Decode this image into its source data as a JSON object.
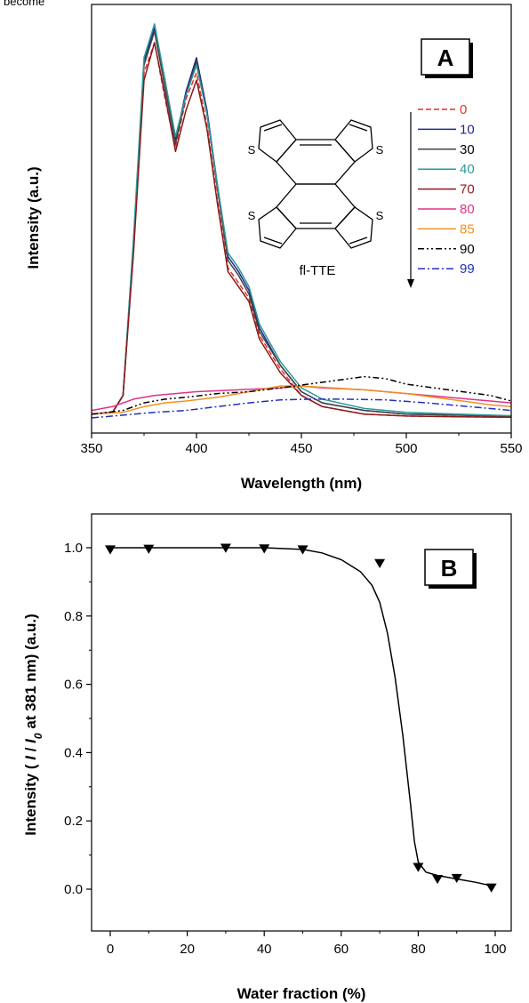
{
  "top_text": "become",
  "chart_data": [
    {
      "type": "line",
      "panel_label": "A",
      "xlabel": "Wavelength (nm)",
      "ylabel": "Intensity (a.u.)",
      "xlim": [
        350,
        550
      ],
      "ylim": [
        0,
        1.06
      ],
      "x_ticks": [
        350,
        400,
        450,
        500,
        550
      ],
      "y_ticks_shown": false,
      "molecule_label": "fl-TTE",
      "molecule_atom_label": "S",
      "legend_position": "right",
      "legend_arrow": "downward",
      "series": [
        {
          "name": "0",
          "color": "#e8302a",
          "dash": "dashed",
          "points": [
            [
              350,
              0.01
            ],
            [
              360,
              0.015
            ],
            [
              365,
              0.06
            ],
            [
              370,
              0.45
            ],
            [
              375,
              0.92
            ],
            [
              380,
              1.0
            ],
            [
              385,
              0.85
            ],
            [
              390,
              0.72
            ],
            [
              395,
              0.85
            ],
            [
              400,
              0.92
            ],
            [
              405,
              0.78
            ],
            [
              410,
              0.58
            ],
            [
              415,
              0.4
            ],
            [
              420,
              0.36
            ],
            [
              425,
              0.32
            ],
            [
              430,
              0.22
            ],
            [
              440,
              0.13
            ],
            [
              450,
              0.06
            ],
            [
              460,
              0.03
            ],
            [
              480,
              0.01
            ],
            [
              500,
              0.005
            ],
            [
              525,
              0.003
            ],
            [
              550,
              0.002
            ]
          ]
        },
        {
          "name": "10",
          "color": "#1f2a8a",
          "dash": "solid",
          "points": [
            [
              350,
              0.01
            ],
            [
              360,
              0.015
            ],
            [
              365,
              0.06
            ],
            [
              370,
              0.47
            ],
            [
              375,
              0.95
            ],
            [
              380,
              1.04
            ],
            [
              385,
              0.9
            ],
            [
              390,
              0.74
            ],
            [
              395,
              0.87
            ],
            [
              400,
              0.96
            ],
            [
              405,
              0.82
            ],
            [
              410,
              0.62
            ],
            [
              415,
              0.43
            ],
            [
              420,
              0.39
            ],
            [
              425,
              0.34
            ],
            [
              430,
              0.24
            ],
            [
              440,
              0.14
            ],
            [
              450,
              0.07
            ],
            [
              460,
              0.04
            ],
            [
              480,
              0.02
            ],
            [
              500,
              0.01
            ],
            [
              525,
              0.008
            ],
            [
              550,
              0.005
            ]
          ]
        },
        {
          "name": "30",
          "color": "#444444",
          "dash": "solid",
          "points": [
            [
              350,
              0.01
            ],
            [
              360,
              0.015
            ],
            [
              365,
              0.06
            ],
            [
              370,
              0.46
            ],
            [
              375,
              0.94
            ],
            [
              380,
              1.03
            ],
            [
              385,
              0.88
            ],
            [
              390,
              0.73
            ],
            [
              395,
              0.86
            ],
            [
              400,
              0.95
            ],
            [
              405,
              0.81
            ],
            [
              410,
              0.61
            ],
            [
              415,
              0.42
            ],
            [
              420,
              0.38
            ],
            [
              425,
              0.33
            ],
            [
              430,
              0.23
            ],
            [
              440,
              0.14
            ],
            [
              450,
              0.07
            ],
            [
              460,
              0.04
            ],
            [
              480,
              0.02
            ],
            [
              500,
              0.01
            ],
            [
              525,
              0.007
            ],
            [
              550,
              0.004
            ]
          ]
        },
        {
          "name": "40",
          "color": "#2a9a9a",
          "dash": "solid",
          "points": [
            [
              350,
              0.01
            ],
            [
              360,
              0.015
            ],
            [
              365,
              0.06
            ],
            [
              370,
              0.48
            ],
            [
              375,
              0.96
            ],
            [
              380,
              1.05
            ],
            [
              385,
              0.9
            ],
            [
              390,
              0.75
            ],
            [
              395,
              0.86
            ],
            [
              400,
              0.94
            ],
            [
              405,
              0.81
            ],
            [
              410,
              0.62
            ],
            [
              415,
              0.44
            ],
            [
              420,
              0.4
            ],
            [
              425,
              0.35
            ],
            [
              430,
              0.25
            ],
            [
              440,
              0.15
            ],
            [
              450,
              0.08
            ],
            [
              460,
              0.05
            ],
            [
              480,
              0.025
            ],
            [
              500,
              0.015
            ],
            [
              525,
              0.01
            ],
            [
              550,
              0.006
            ]
          ]
        },
        {
          "name": "70",
          "color": "#8b1a1a",
          "dash": "solid",
          "points": [
            [
              350,
              0.01
            ],
            [
              360,
              0.015
            ],
            [
              365,
              0.06
            ],
            [
              370,
              0.44
            ],
            [
              375,
              0.9
            ],
            [
              380,
              1.0
            ],
            [
              385,
              0.86
            ],
            [
              390,
              0.71
            ],
            [
              395,
              0.82
            ],
            [
              400,
              0.9
            ],
            [
              405,
              0.77
            ],
            [
              410,
              0.57
            ],
            [
              415,
              0.39
            ],
            [
              420,
              0.35
            ],
            [
              425,
              0.31
            ],
            [
              430,
              0.21
            ],
            [
              440,
              0.12
            ],
            [
              450,
              0.06
            ],
            [
              460,
              0.03
            ],
            [
              480,
              0.01
            ],
            [
              500,
              0.005
            ],
            [
              525,
              0.003
            ],
            [
              550,
              0.002
            ]
          ]
        },
        {
          "name": "80",
          "color": "#e0308a",
          "dash": "solid",
          "points": [
            [
              350,
              0.02
            ],
            [
              360,
              0.03
            ],
            [
              370,
              0.05
            ],
            [
              380,
              0.06
            ],
            [
              400,
              0.07
            ],
            [
              420,
              0.075
            ],
            [
              440,
              0.08
            ],
            [
              450,
              0.085
            ],
            [
              460,
              0.08
            ],
            [
              480,
              0.075
            ],
            [
              500,
              0.065
            ],
            [
              520,
              0.055
            ],
            [
              540,
              0.045
            ],
            [
              550,
              0.04
            ]
          ]
        },
        {
          "name": "85",
          "color": "#f09020",
          "dash": "solid",
          "points": [
            [
              350,
              0.01
            ],
            [
              365,
              0.015
            ],
            [
              375,
              0.03
            ],
            [
              385,
              0.04
            ],
            [
              395,
              0.045
            ],
            [
              410,
              0.055
            ],
            [
              425,
              0.07
            ],
            [
              440,
              0.085
            ],
            [
              450,
              0.085
            ],
            [
              465,
              0.08
            ],
            [
              480,
              0.075
            ],
            [
              500,
              0.065
            ],
            [
              520,
              0.05
            ],
            [
              540,
              0.035
            ],
            [
              550,
              0.03
            ]
          ]
        },
        {
          "name": "90",
          "color": "#000000",
          "dash": "dashdotdot",
          "points": [
            [
              350,
              0.01
            ],
            [
              365,
              0.02
            ],
            [
              375,
              0.04
            ],
            [
              385,
              0.05
            ],
            [
              395,
              0.055
            ],
            [
              410,
              0.065
            ],
            [
              425,
              0.07
            ],
            [
              440,
              0.08
            ],
            [
              460,
              0.095
            ],
            [
              480,
              0.11
            ],
            [
              490,
              0.105
            ],
            [
              500,
              0.09
            ],
            [
              520,
              0.075
            ],
            [
              540,
              0.06
            ],
            [
              550,
              0.045
            ]
          ]
        },
        {
          "name": "99",
          "color": "#2030c0",
          "dash": "dashdot",
          "points": [
            [
              350,
              0.0
            ],
            [
              360,
              0.005
            ],
            [
              370,
              0.01
            ],
            [
              380,
              0.015
            ],
            [
              395,
              0.02
            ],
            [
              410,
              0.03
            ],
            [
              425,
              0.04
            ],
            [
              440,
              0.048
            ],
            [
              455,
              0.05
            ],
            [
              470,
              0.05
            ],
            [
              490,
              0.048
            ],
            [
              510,
              0.04
            ],
            [
              530,
              0.03
            ],
            [
              550,
              0.02
            ]
          ]
        }
      ]
    },
    {
      "type": "scatter",
      "panel_label": "B",
      "xlabel": "Water fraction (%)",
      "ylabel_parts": [
        "Intensity ( ",
        "I",
        " / ",
        "I",
        "0",
        " at 381 nm) (a.u.)"
      ],
      "xlim": [
        -5,
        105
      ],
      "ylim": [
        -0.1,
        1.1
      ],
      "x_ticks": [
        0,
        20,
        40,
        60,
        80,
        100
      ],
      "y_ticks": [
        0.0,
        0.2,
        0.4,
        0.6,
        0.8,
        1.0
      ],
      "y_tick_labels": [
        "0.0",
        "0.2",
        "0.4",
        "0.6",
        "0.8",
        "1.0"
      ],
      "marker": "inverted-triangle",
      "x": [
        0,
        10,
        30,
        40,
        50,
        70,
        80,
        85,
        90,
        99
      ],
      "y": [
        0.995,
        0.997,
        1.0,
        0.998,
        0.995,
        0.955,
        0.065,
        0.03,
        0.033,
        0.005
      ],
      "fit_curve": [
        [
          0,
          1.0
        ],
        [
          20,
          1.0
        ],
        [
          40,
          1.0
        ],
        [
          50,
          0.995
        ],
        [
          55,
          0.985
        ],
        [
          60,
          0.965
        ],
        [
          65,
          0.93
        ],
        [
          68,
          0.89
        ],
        [
          70,
          0.84
        ],
        [
          72,
          0.75
        ],
        [
          74,
          0.62
        ],
        [
          76,
          0.45
        ],
        [
          78,
          0.25
        ],
        [
          79,
          0.14
        ],
        [
          80,
          0.08
        ],
        [
          82,
          0.05
        ],
        [
          85,
          0.04
        ],
        [
          90,
          0.03
        ],
        [
          95,
          0.02
        ],
        [
          99,
          0.01
        ]
      ]
    }
  ]
}
